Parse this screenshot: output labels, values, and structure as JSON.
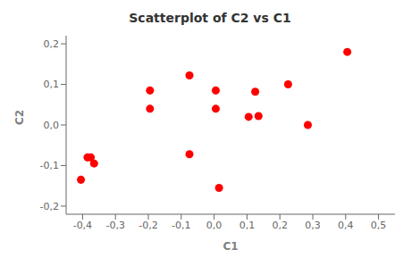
{
  "chart_data": {
    "type": "scatter",
    "title": "Scatterplot of C2 vs C1",
    "xlabel": "C1",
    "ylabel": "C2",
    "x": [
      -0.385,
      -0.365,
      -0.405,
      -0.375,
      -0.195,
      -0.195,
      -0.075,
      -0.075,
      0.005,
      0.005,
      0.015,
      0.105,
      0.125,
      0.135,
      0.225,
      0.285,
      0.405
    ],
    "values": [
      -0.08,
      -0.095,
      -0.135,
      -0.08,
      0.085,
      0.04,
      0.122,
      -0.072,
      0.085,
      0.04,
      -0.155,
      0.02,
      0.082,
      0.022,
      0.1,
      0.0,
      0.18
    ],
    "color": "#ff0000",
    "xlim": [
      -0.45,
      0.55
    ],
    "ylim": [
      -0.22,
      0.22
    ],
    "xticks": [
      {
        "value": -0.4,
        "label": "-0,4"
      },
      {
        "value": -0.3,
        "label": "-0,3"
      },
      {
        "value": -0.2,
        "label": "-0,2"
      },
      {
        "value": -0.1,
        "label": "-0,1"
      },
      {
        "value": 0.0,
        "label": "0,0"
      },
      {
        "value": 0.1,
        "label": "0,1"
      },
      {
        "value": 0.2,
        "label": "0,2"
      },
      {
        "value": 0.3,
        "label": "0,3"
      },
      {
        "value": 0.4,
        "label": "0,4"
      },
      {
        "value": 0.5,
        "label": "0,5"
      }
    ],
    "yticks": [
      {
        "value": -0.2,
        "label": "-0,2"
      },
      {
        "value": -0.1,
        "label": "-0,1"
      },
      {
        "value": 0.0,
        "label": "0,0"
      },
      {
        "value": 0.1,
        "label": "0,1"
      },
      {
        "value": 0.2,
        "label": "0,2"
      }
    ],
    "grid": false
  }
}
